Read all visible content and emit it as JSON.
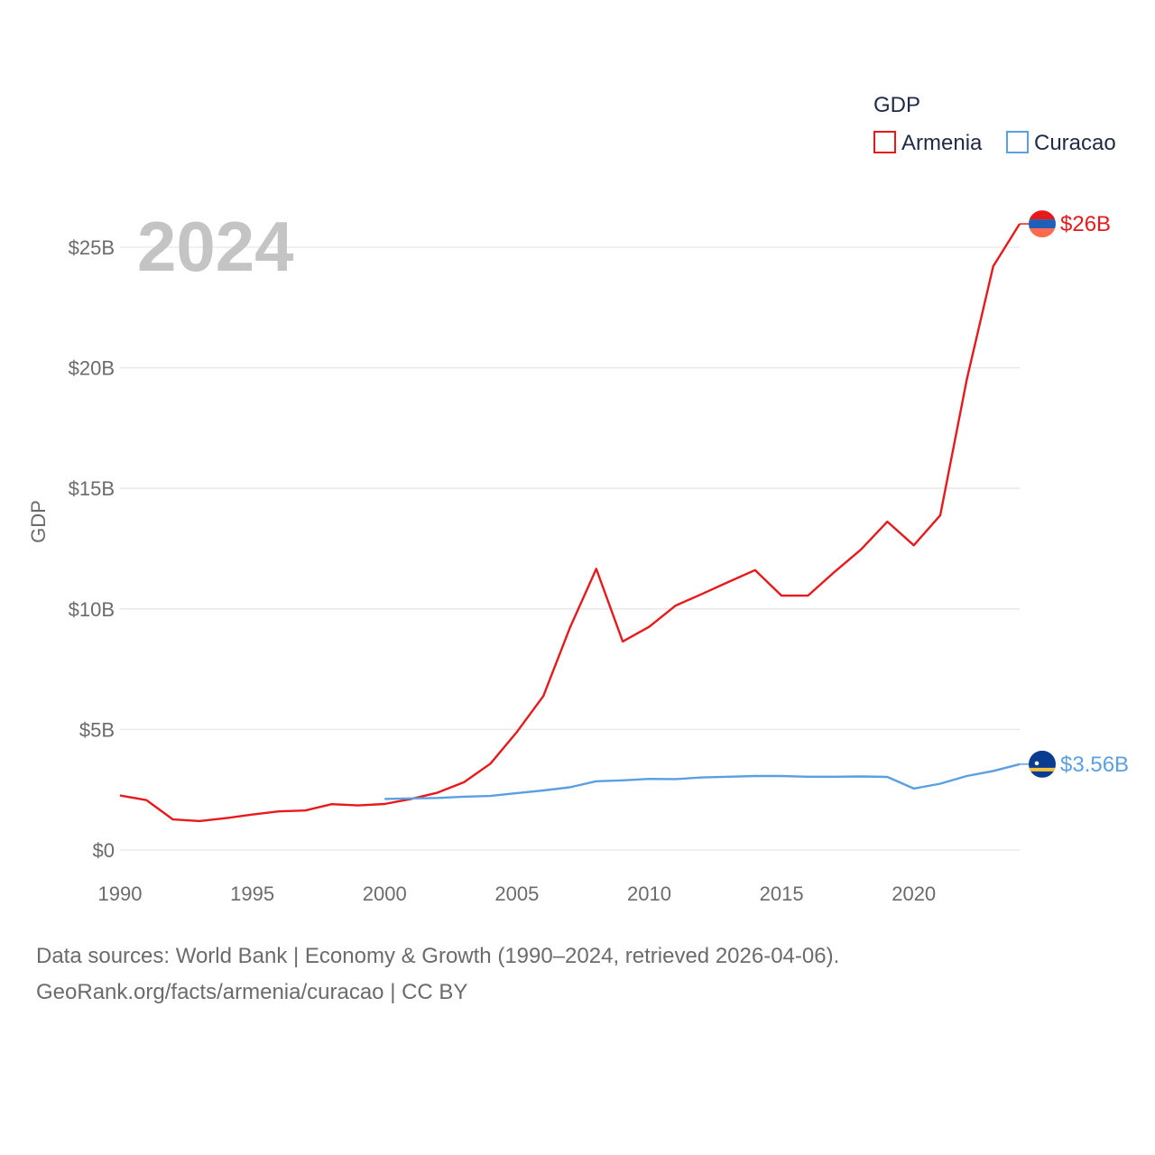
{
  "chart_data": {
    "type": "line",
    "title": "",
    "year_label": "2024",
    "xlabel": "",
    "ylabel": "GDP",
    "xlim": [
      1990,
      2024
    ],
    "ylim": [
      0,
      25
    ],
    "x_ticks": [
      1990,
      1995,
      2000,
      2005,
      2010,
      2015,
      2020
    ],
    "x_tick_labels": [
      "1990",
      "1995",
      "2000",
      "2005",
      "2010",
      "2015",
      "2020"
    ],
    "y_ticks": [
      0,
      5,
      10,
      15,
      20,
      25
    ],
    "y_tick_labels": [
      "$0",
      "$5B",
      "$10B",
      "$15B",
      "$20B",
      "$25B"
    ],
    "grid": true,
    "legend": {
      "title": "GDP",
      "position": "top-right"
    },
    "series": [
      {
        "name": "Armenia",
        "color": "#e8191b",
        "end_label": "$26B",
        "x": [
          1990,
          1991,
          1992,
          1993,
          1994,
          1995,
          1996,
          1997,
          1998,
          1999,
          2000,
          2001,
          2002,
          2003,
          2004,
          2005,
          2006,
          2007,
          2008,
          2009,
          2010,
          2011,
          2012,
          2013,
          2014,
          2015,
          2016,
          2017,
          2018,
          2019,
          2020,
          2021,
          2022,
          2023,
          2024
        ],
        "values": [
          2.26,
          2.07,
          1.27,
          1.2,
          1.32,
          1.47,
          1.6,
          1.64,
          1.9,
          1.85,
          1.91,
          2.12,
          2.38,
          2.81,
          3.58,
          4.9,
          6.39,
          9.21,
          11.66,
          8.65,
          9.26,
          10.14,
          10.62,
          11.12,
          11.61,
          10.55,
          10.55,
          11.53,
          12.46,
          13.62,
          12.64,
          13.88,
          19.51,
          24.21,
          25.97
        ]
      },
      {
        "name": "Curacao",
        "color": "#5b9fe3",
        "end_label": "$3.56B",
        "x": [
          2000,
          2001,
          2002,
          2003,
          2004,
          2005,
          2006,
          2007,
          2008,
          2009,
          2010,
          2011,
          2012,
          2013,
          2014,
          2015,
          2016,
          2017,
          2018,
          2019,
          2020,
          2021,
          2022,
          2023,
          2024
        ],
        "values": [
          2.12,
          2.14,
          2.16,
          2.21,
          2.24,
          2.36,
          2.47,
          2.6,
          2.85,
          2.89,
          2.95,
          2.94,
          3.01,
          3.04,
          3.07,
          3.07,
          3.04,
          3.04,
          3.05,
          3.03,
          2.55,
          2.75,
          3.07,
          3.28,
          3.56
        ]
      }
    ]
  },
  "footer": {
    "line1": "Data sources: World Bank | Economy & Growth (1990–2024, retrieved 2026-04-06).",
    "line2": "GeoRank.org/facts/armenia/curacao | CC BY"
  }
}
